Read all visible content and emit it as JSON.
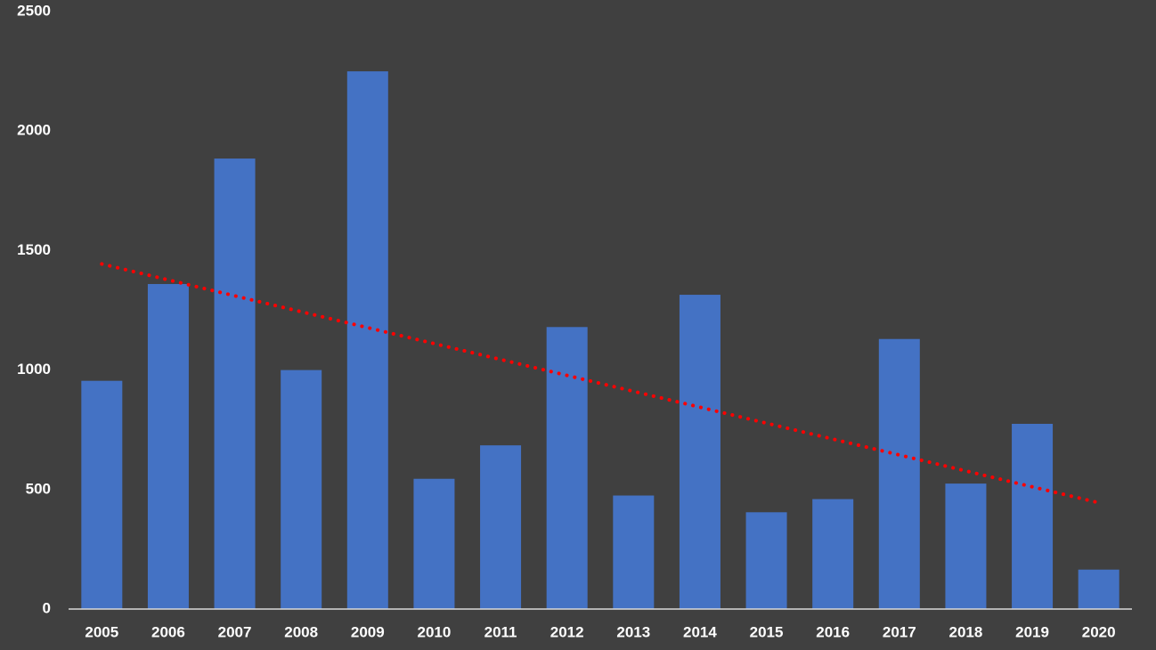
{
  "chart_data": {
    "type": "bar",
    "categories": [
      "2005",
      "2006",
      "2007",
      "2008",
      "2009",
      "2010",
      "2011",
      "2012",
      "2013",
      "2014",
      "2015",
      "2016",
      "2017",
      "2018",
      "2019",
      "2020"
    ],
    "values": [
      955,
      1360,
      1885,
      1000,
      2250,
      545,
      685,
      1180,
      475,
      1315,
      405,
      460,
      1130,
      525,
      775,
      165
    ],
    "color": "#4472c4",
    "ylim": [
      0,
      2500
    ],
    "yticks": [
      0,
      500,
      1000,
      1500,
      2000,
      2500
    ],
    "grid": false,
    "trendline": {
      "kind": "linear",
      "color": "#ff0000"
    }
  }
}
